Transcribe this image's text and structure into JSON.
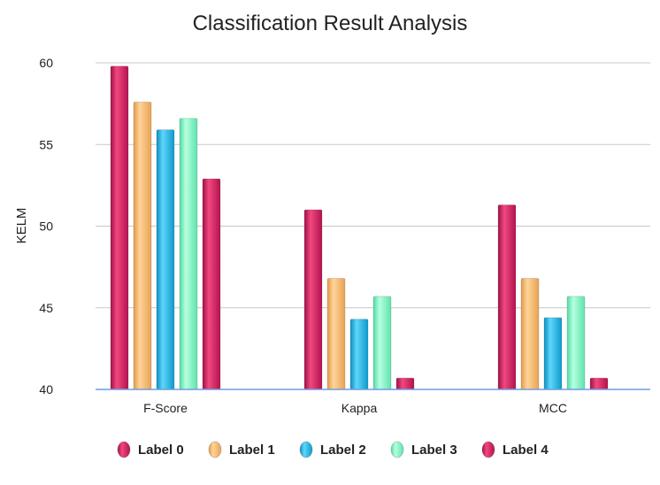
{
  "chart_data": {
    "type": "bar",
    "title": "Classification Result Analysis",
    "xlabel": "",
    "ylabel": "KELM",
    "ylim": [
      40,
      60
    ],
    "yticks": [
      "40",
      "45",
      "50",
      "55",
      "60"
    ],
    "categories": [
      "F-Score",
      "Kappa",
      "MCC"
    ],
    "grid": true,
    "legend_position": "bottom",
    "series": [
      {
        "name": "Label 0",
        "color": "#d81b60",
        "values": [
          59.8,
          51.0,
          51.3
        ]
      },
      {
        "name": "Label 1",
        "color": "#f9b96a",
        "values": [
          57.6,
          46.8,
          46.8
        ]
      },
      {
        "name": "Label 2",
        "color": "#11b5e6",
        "values": [
          55.9,
          44.3,
          44.4
        ]
      },
      {
        "name": "Label 3",
        "color": "#7cf4c2",
        "values": [
          56.6,
          45.7,
          45.7
        ]
      },
      {
        "name": "Label 4",
        "color": "#d81b60",
        "values": [
          52.9,
          40.7,
          40.7
        ]
      }
    ]
  }
}
